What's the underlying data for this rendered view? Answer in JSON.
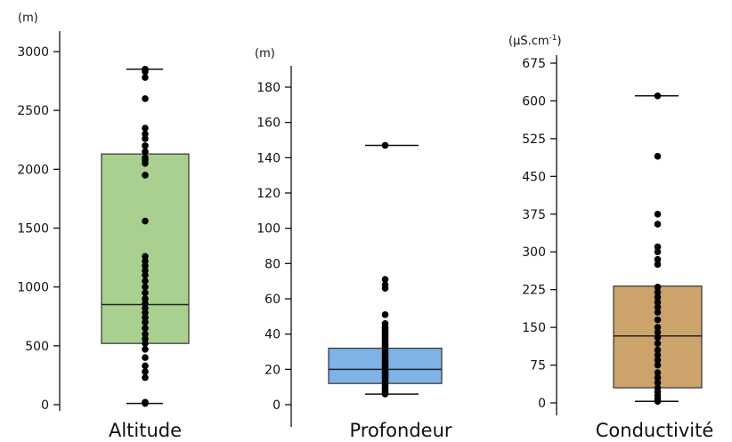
{
  "chart_data": [
    {
      "type": "box",
      "category": "Altitude",
      "unit": "(m)",
      "yticks": [
        0,
        500,
        1000,
        1500,
        2000,
        2500,
        3000
      ],
      "ylim": [
        0,
        3000
      ],
      "box": {
        "q1": 520,
        "median": 850,
        "q3": 2130,
        "whisker_min": 10,
        "whisker_max": 2850
      },
      "box_color": "#a9d08e",
      "points": [
        10,
        20,
        230,
        280,
        330,
        400,
        470,
        520,
        560,
        600,
        650,
        700,
        740,
        780,
        820,
        860,
        900,
        950,
        1000,
        1050,
        1100,
        1140,
        1180,
        1220,
        1260,
        1560,
        1950,
        2050,
        2080,
        2100,
        2150,
        2200,
        2260,
        2300,
        2350,
        2600,
        2780,
        2830,
        2850
      ]
    },
    {
      "type": "box",
      "category": "Profondeur",
      "unit": "(m)",
      "yticks": [
        0,
        20,
        40,
        60,
        80,
        100,
        120,
        140,
        160,
        180
      ],
      "ylim": [
        0,
        180
      ],
      "box": {
        "q1": 12,
        "median": 20,
        "q3": 32,
        "whisker_min": 6,
        "whisker_max": 147
      },
      "box_color": "#7fb2e5",
      "points": [
        6,
        7,
        8,
        9,
        10,
        11,
        12,
        13,
        14,
        15,
        16,
        17,
        18,
        19,
        20,
        21,
        22,
        23,
        24,
        25,
        26,
        27,
        28,
        29,
        30,
        31,
        32,
        33,
        34,
        35,
        36,
        37,
        38,
        39,
        40,
        41,
        42,
        43,
        44,
        46,
        51,
        66,
        68,
        71,
        147
      ]
    },
    {
      "type": "box",
      "category": "Conductivité",
      "unit_prefix": "(µS.cm",
      "unit_sup": "-1",
      "unit_suffix": ")",
      "yticks": [
        0,
        75,
        150,
        225,
        300,
        375,
        450,
        525,
        600,
        675
      ],
      "ylim": [
        0,
        675
      ],
      "box": {
        "q1": 30,
        "median": 133,
        "q3": 232,
        "whisker_min": 3,
        "whisker_max": 610
      },
      "box_color": "#cda36c",
      "points": [
        3,
        8,
        15,
        22,
        30,
        40,
        50,
        60,
        75,
        85,
        95,
        105,
        118,
        130,
        140,
        150,
        165,
        180,
        190,
        200,
        210,
        220,
        230,
        275,
        285,
        300,
        310,
        355,
        375,
        490,
        610
      ]
    }
  ]
}
